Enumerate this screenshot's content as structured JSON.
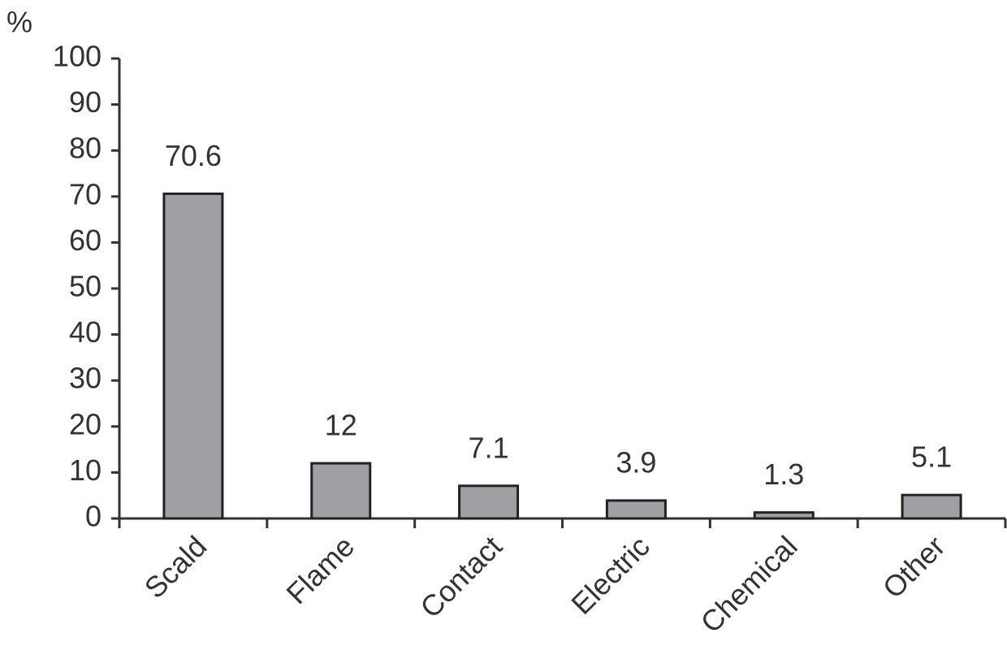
{
  "chart_data": {
    "type": "bar",
    "y_label": "%",
    "categories": [
      "Scald",
      "Flame",
      "Contact",
      "Electric",
      "Chemical",
      "Other"
    ],
    "values": [
      70.6,
      12,
      7.1,
      3.9,
      1.3,
      5.1
    ],
    "color": "#a0a0a4",
    "ylim": [
      0,
      100
    ],
    "yticks": [
      0,
      10,
      20,
      30,
      40,
      50,
      60,
      70,
      80,
      90,
      100
    ],
    "grid": false
  }
}
